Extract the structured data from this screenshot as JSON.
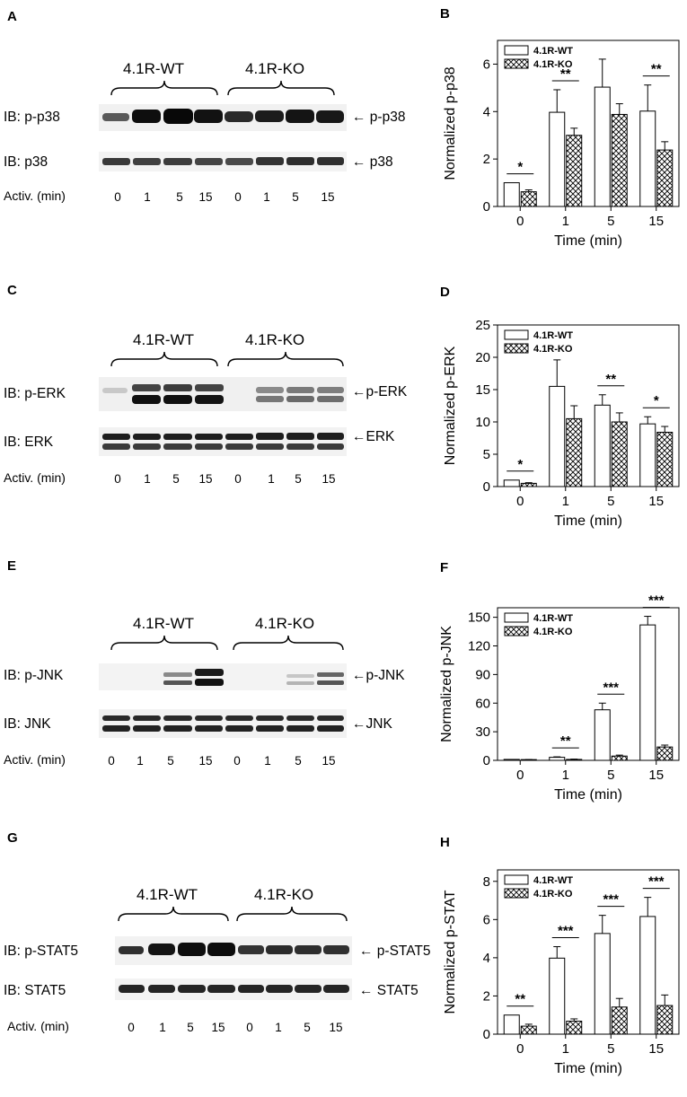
{
  "blot_panels": [
    {
      "letter": "A",
      "group_wt": "4.1R-WT",
      "group_ko": "4.1R-KO",
      "rows": [
        {
          "ib": "IB: p-p38",
          "band": "← p-p38"
        },
        {
          "ib": "IB: p38",
          "band": "← p38"
        }
      ],
      "activ_label": "Activ. (min)",
      "times": [
        "0",
        "1",
        "5",
        "15",
        "0",
        "1",
        "5",
        "15"
      ]
    },
    {
      "letter": "C",
      "group_wt": "4.1R-WT",
      "group_ko": "4.1R-KO",
      "rows": [
        {
          "ib": "IB: p-ERK",
          "band": "←p-ERK"
        },
        {
          "ib": "IB: ERK",
          "band": "←ERK"
        }
      ],
      "activ_label": "Activ. (min)",
      "times": [
        "0",
        "1",
        "5",
        "15",
        "0",
        "1",
        "5",
        "15"
      ]
    },
    {
      "letter": "E",
      "group_wt": "4.1R-WT",
      "group_ko": "4.1R-KO",
      "rows": [
        {
          "ib": "IB: p-JNK",
          "band": "←p-JNK"
        },
        {
          "ib": "IB: JNK",
          "band": "←JNK"
        }
      ],
      "activ_label": "Activ. (min)",
      "times": [
        "0",
        "1",
        "5",
        "15",
        "0",
        "1",
        "5",
        "15"
      ]
    },
    {
      "letter": "G",
      "group_wt": "4.1R-WT",
      "group_ko": "4.1R-KO",
      "rows": [
        {
          "ib": "IB: p-STAT5",
          "band": "← p-STAT5"
        },
        {
          "ib": "IB: STAT5",
          "band": "← STAT5"
        }
      ],
      "activ_label": "Activ. (min)",
      "times": [
        "0",
        "1",
        "5",
        "15",
        "0",
        "1",
        "5",
        "15"
      ]
    }
  ],
  "chart_data": [
    {
      "panel": "B",
      "type": "bar",
      "categories": [
        "0",
        "1",
        "5",
        "15"
      ],
      "series": [
        {
          "name": "4.1R-WT",
          "values": [
            1.0,
            3.97,
            5.03,
            4.02
          ],
          "errors": [
            0,
            0.95,
            1.18,
            1.1
          ]
        },
        {
          "name": "4.1R-KO",
          "values": [
            0.62,
            3.0,
            3.88,
            2.38
          ],
          "errors": [
            0.08,
            0.3,
            0.45,
            0.35
          ]
        }
      ],
      "ylabel": "Normalized p-p38",
      "xlabel": "Time (min)",
      "ylim": [
        0,
        7
      ],
      "yticks": [
        0,
        2,
        4,
        6
      ],
      "sig": [
        "*",
        "**",
        "",
        "**"
      ],
      "legend": [
        "4.1R-WT",
        "4.1R-KO"
      ]
    },
    {
      "panel": "D",
      "type": "bar",
      "categories": [
        "0",
        "1",
        "5",
        "15"
      ],
      "series": [
        {
          "name": "4.1R-WT",
          "values": [
            1.0,
            15.5,
            12.6,
            9.7
          ],
          "errors": [
            0,
            4.1,
            1.6,
            1.1
          ]
        },
        {
          "name": "4.1R-KO",
          "values": [
            0.5,
            10.5,
            10.0,
            8.4
          ],
          "errors": [
            0.1,
            2.0,
            1.4,
            0.9
          ]
        }
      ],
      "ylabel": "Normalized p-ERK",
      "xlabel": "Time (min)",
      "ylim": [
        0,
        25
      ],
      "yticks": [
        0,
        5,
        10,
        15,
        20,
        25
      ],
      "sig": [
        "*",
        "",
        "**",
        "*"
      ],
      "legend": [
        "4.1R-WT",
        "4.1R-KO"
      ]
    },
    {
      "panel": "F",
      "type": "bar",
      "categories": [
        "0",
        "1",
        "5",
        "15"
      ],
      "series": [
        {
          "name": "4.1R-WT",
          "values": [
            1.0,
            3.2,
            53,
            142
          ],
          "errors": [
            0,
            0.5,
            7,
            9
          ]
        },
        {
          "name": "4.1R-KO",
          "values": [
            0.8,
            1.0,
            4.5,
            14
          ],
          "errors": [
            0.1,
            0.3,
            1.0,
            2
          ]
        }
      ],
      "ylabel": "Normalized p-JNK",
      "xlabel": "Time (min)",
      "ylim": [
        0,
        160
      ],
      "yticks": [
        0,
        30,
        60,
        90,
        120,
        150
      ],
      "sig": [
        "",
        "**",
        "***",
        "***"
      ],
      "legend": [
        "4.1R-WT",
        "4.1R-KO"
      ]
    },
    {
      "panel": "H",
      "type": "bar",
      "categories": [
        "0",
        "1",
        "5",
        "15"
      ],
      "series": [
        {
          "name": "4.1R-WT",
          "values": [
            1.0,
            3.98,
            5.27,
            6.16
          ],
          "errors": [
            0,
            0.6,
            0.95,
            1.0
          ]
        },
        {
          "name": "4.1R-KO",
          "values": [
            0.42,
            0.68,
            1.42,
            1.5
          ],
          "errors": [
            0.1,
            0.12,
            0.45,
            0.55
          ]
        }
      ],
      "ylabel": "Normalized p-STAT",
      "xlabel": "Time (min)",
      "ylim": [
        0,
        8.6
      ],
      "yticks": [
        0,
        2,
        4,
        6,
        8
      ],
      "sig": [
        "**",
        "***",
        "***",
        "***"
      ],
      "legend": [
        "4.1R-WT",
        "4.1R-KO"
      ]
    }
  ]
}
